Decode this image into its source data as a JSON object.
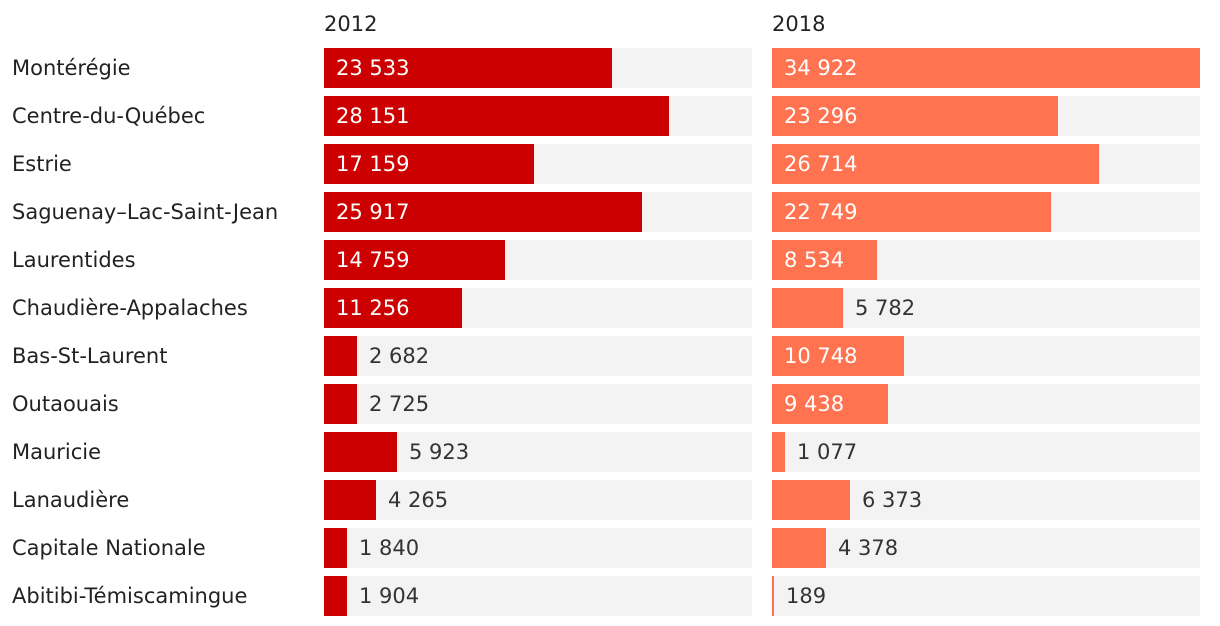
{
  "chart_data": {
    "type": "bar",
    "orientation": "horizontal",
    "layout": "small-multiples",
    "title": "",
    "xlabel": "",
    "ylabel": "",
    "xlim": [
      0,
      34922
    ],
    "categories": [
      "Montérégie",
      "Centre-du-Québec",
      "Estrie",
      "Saguenay–Lac-Saint-Jean",
      "Laurentides",
      "Chaudière-Appalaches",
      "Bas-St-Laurent",
      "Outaouais",
      "Mauricie",
      "Lanaudière",
      "Capitale Nationale",
      "Abitibi-Témiscamingue"
    ],
    "series": [
      {
        "name": "2012",
        "color": "#cc0000",
        "values": [
          23533,
          28151,
          17159,
          25917,
          14759,
          11256,
          2682,
          2725,
          5923,
          4265,
          1840,
          1904
        ],
        "labels": [
          "23 533",
          "28 151",
          "17 159",
          "25 917",
          "14 759",
          "11 256",
          "2 682",
          "2 725",
          "5 923",
          "4 265",
          "1 840",
          "1 904"
        ]
      },
      {
        "name": "2018",
        "color": "#ff7350",
        "values": [
          34922,
          23296,
          26714,
          22749,
          8534,
          5782,
          10748,
          9438,
          1077,
          6373,
          4378,
          189
        ],
        "labels": [
          "34 922",
          "23 296",
          "26 714",
          "22 749",
          "8 534",
          "5 782",
          "10 748",
          "9 438",
          "1 077",
          "6 373",
          "4 378",
          "189"
        ]
      }
    ]
  }
}
